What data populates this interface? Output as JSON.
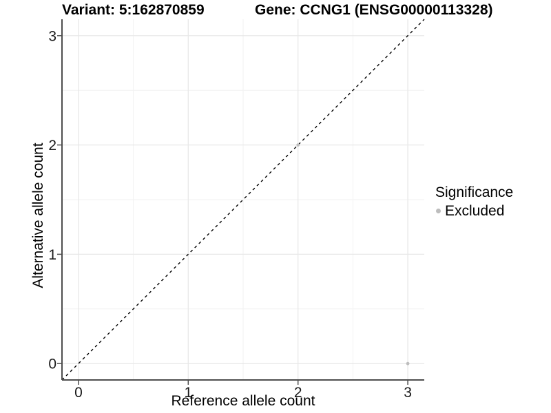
{
  "chart_data": {
    "type": "scatter",
    "title_left": "Variant: 5:162870859",
    "title_right": "Gene: CCNG1 (ENSG00000113328)",
    "xlabel": "Reference allele count",
    "ylabel": "Alternative allele count",
    "xlim": [
      -0.15,
      3.15
    ],
    "ylim": [
      -0.15,
      3.15
    ],
    "x_ticks": [
      0,
      1,
      2,
      3
    ],
    "y_ticks": [
      0,
      1,
      2,
      3
    ],
    "x_minor_ticks": [
      0.5,
      1.5,
      2.5
    ],
    "y_minor_ticks": [
      0.5,
      1.5,
      2.5
    ],
    "grid": true,
    "legend_position": "right",
    "identity_line": {
      "slope": 1,
      "intercept": 0,
      "style": "dashed",
      "color": "#000000"
    },
    "series": [
      {
        "name": "Excluded",
        "color": "#bdbdbd",
        "points": [
          {
            "x": 2,
            "y": 2
          },
          {
            "x": 3,
            "y": 0
          }
        ]
      }
    ],
    "legend": {
      "title": "Significance",
      "entries": [
        {
          "label": "Excluded",
          "color": "#bdbdbd"
        }
      ]
    },
    "colors": {
      "axis_line": "#4d4d4d",
      "tick_mark": "#4d4d4d",
      "tick_label": "#1a1a1a",
      "grid_major": "#e8e8e8",
      "grid_minor": "#f2f2f2",
      "background": "#ffffff"
    }
  }
}
